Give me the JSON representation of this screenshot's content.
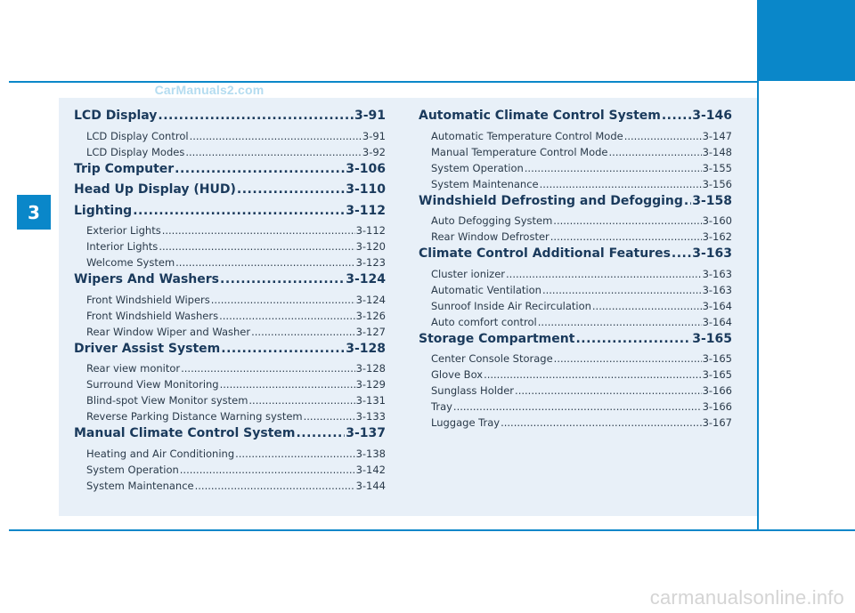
{
  "chapter": "3",
  "watermark_top": "CarManuals2.com",
  "watermark_bottom": "carmanualsonline.info",
  "colors": {
    "accent": "#0a87c9",
    "panel": "#e8f0f8",
    "heading": "#1a3a5c"
  },
  "toc_left": [
    {
      "title": "LCD Display",
      "page": "3-91",
      "items": [
        {
          "title": "LCD Display Control",
          "page": "3-91"
        },
        {
          "title": "LCD Display Modes",
          "page": "3-92"
        }
      ]
    },
    {
      "title": "Trip Computer",
      "page": "3-106",
      "items": []
    },
    {
      "title": "Head Up Display (HUD)",
      "page": "3-110",
      "items": []
    },
    {
      "title": "Lighting",
      "page": "3-112",
      "items": [
        {
          "title": "Exterior Lights",
          "page": "3-112"
        },
        {
          "title": "Interior Lights",
          "page": "3-120"
        },
        {
          "title": "Welcome System",
          "page": "3-123"
        }
      ]
    },
    {
      "title": "Wipers And Washers",
      "page": "3-124",
      "items": [
        {
          "title": "Front Windshield Wipers",
          "page": "3-124"
        },
        {
          "title": "Front Windshield Washers",
          "page": "3-126"
        },
        {
          "title": "Rear Window Wiper and Washer",
          "page": "3-127"
        }
      ]
    },
    {
      "title": "Driver Assist System",
      "page": "3-128",
      "items": [
        {
          "title": "Rear view monitor",
          "page": "3-128"
        },
        {
          "title": "Surround View Monitoring",
          "page": "3-129"
        },
        {
          "title": "Blind-spot View Monitor system",
          "page": "3-131"
        },
        {
          "title": "Reverse Parking Distance Warning system",
          "page": "3-133"
        }
      ]
    },
    {
      "title": "Manual Climate Control System",
      "page": "3-137",
      "items": [
        {
          "title": "Heating and Air Conditioning",
          "page": "3-138"
        },
        {
          "title": "System Operation",
          "page": "3-142"
        },
        {
          "title": "System Maintenance",
          "page": "3-144"
        }
      ]
    }
  ],
  "toc_right": [
    {
      "title": "Automatic Climate Control System",
      "page": "3-146",
      "items": [
        {
          "title": "Automatic Temperature Control Mode",
          "page": "3-147"
        },
        {
          "title": "Manual Temperature Control Mode",
          "page": "3-148"
        },
        {
          "title": "System Operation",
          "page": "3-155"
        },
        {
          "title": "System Maintenance",
          "page": "3-156"
        }
      ]
    },
    {
      "title": "Windshield Defrosting and Defogging",
      "page": "3-158",
      "items": [
        {
          "title": "Auto Defogging System",
          "page": "3-160"
        },
        {
          "title": "Rear Window Defroster",
          "page": "3-162"
        }
      ]
    },
    {
      "title": "Climate Control Additional Features",
      "page": "3-163",
      "items": [
        {
          "title": "Cluster ionizer",
          "page": "3-163"
        },
        {
          "title": "Automatic Ventilation",
          "page": "3-163"
        },
        {
          "title": "Sunroof Inside Air Recirculation",
          "page": "3-164"
        },
        {
          "title": "Auto comfort control",
          "page": "3-164"
        }
      ]
    },
    {
      "title": "Storage Compartment",
      "page": "3-165",
      "items": [
        {
          "title": "Center Console Storage",
          "page": "3-165"
        },
        {
          "title": "Glove Box",
          "page": "3-165"
        },
        {
          "title": "Sunglass Holder",
          "page": "3-166"
        },
        {
          "title": "Tray",
          "page": "3-166"
        },
        {
          "title": "Luggage Tray",
          "page": "3-167"
        }
      ]
    }
  ]
}
